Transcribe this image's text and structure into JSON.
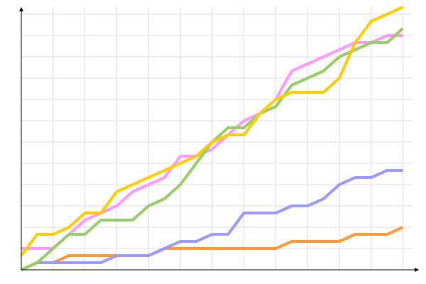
{
  "chart_data": {
    "type": "line",
    "x": [
      0,
      1,
      2,
      3,
      4,
      5,
      6,
      7,
      8,
      9,
      10,
      11,
      12,
      13,
      14,
      15,
      16,
      17,
      18,
      19,
      20,
      21,
      22,
      23,
      24
    ],
    "series": [
      {
        "color": "#ff9933",
        "values": [
          0,
          1,
          1,
          2,
          2,
          2,
          2,
          2,
          2,
          3,
          3,
          3,
          3,
          3,
          3,
          3,
          3,
          4,
          4,
          4,
          4,
          5,
          5,
          5,
          6
        ]
      },
      {
        "color": "#9999ff",
        "values": [
          0,
          1,
          1,
          1,
          1,
          1,
          2,
          2,
          2,
          3,
          4,
          4,
          5,
          5,
          8,
          8,
          8,
          9,
          9,
          10,
          12,
          13,
          13,
          14,
          14
        ]
      },
      {
        "color": "#ff99ff",
        "values": [
          3,
          3,
          3,
          5,
          7,
          8,
          9,
          11,
          12,
          13,
          16,
          16,
          17,
          19,
          21,
          22,
          24,
          28,
          29,
          30,
          31,
          32,
          32,
          33,
          33
        ]
      },
      {
        "color": "#99cc66",
        "values": [
          0,
          1,
          3,
          5,
          5,
          7,
          7,
          7,
          9,
          10,
          12,
          15,
          18,
          20,
          20,
          22,
          23,
          26,
          27,
          28,
          30,
          31,
          32,
          32,
          34
        ]
      },
      {
        "color": "#ffcc00",
        "values": [
          2,
          5,
          5,
          6,
          8,
          8,
          11,
          12,
          13,
          14,
          15,
          16,
          18,
          19,
          19,
          22,
          24,
          25,
          25,
          25,
          27,
          32,
          35,
          36,
          37
        ]
      }
    ],
    "xlim": [
      0,
      25
    ],
    "ylim": [
      0,
      37
    ],
    "xticks": [
      2,
      4,
      6,
      8,
      10,
      12,
      14,
      16,
      18,
      20,
      22,
      24
    ],
    "yticks": [
      3,
      6,
      9,
      12,
      15,
      18,
      21,
      24,
      27,
      30,
      33,
      36
    ],
    "grid": true,
    "tick_labels": false
  }
}
